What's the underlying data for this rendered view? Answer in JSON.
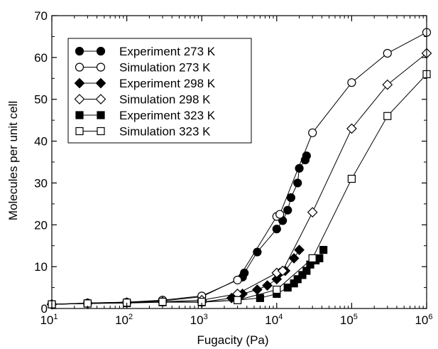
{
  "chart_data": {
    "type": "line",
    "title": "",
    "xlabel": "Fugacity (Pa)",
    "ylabel": "Molecules per unit cell",
    "xscale": "log",
    "xlim": [
      10,
      1000000
    ],
    "ylim": [
      0,
      70
    ],
    "yticks": [
      "0",
      "10",
      "20",
      "30",
      "40",
      "50",
      "60",
      "70"
    ],
    "xticks": [
      {
        "base": "10",
        "exp": "1",
        "value": 10
      },
      {
        "base": "10",
        "exp": "2",
        "value": 100
      },
      {
        "base": "10",
        "exp": "3",
        "value": 1000
      },
      {
        "base": "10",
        "exp": "4",
        "value": 10000
      },
      {
        "base": "10",
        "exp": "5",
        "value": 100000
      },
      {
        "base": "10",
        "exp": "6",
        "value": 1000000
      }
    ],
    "grid": false,
    "legend_position": "top-left",
    "series": [
      {
        "name": "Experiment 273 K",
        "marker": "circle",
        "filled": true,
        "x": [
          10,
          30,
          100,
          300,
          1000,
          3500,
          3700,
          5500,
          10000,
          12000,
          14000,
          15500,
          19000,
          20000,
          24000,
          25000
        ],
        "y": [
          1,
          1.3,
          1.5,
          1.8,
          2.8,
          7.5,
          8.5,
          13.5,
          19,
          21,
          23.5,
          26.5,
          30,
          33.5,
          35.5,
          36.5
        ]
      },
      {
        "name": "Simulation 273 K",
        "marker": "circle",
        "filled": false,
        "x": [
          10,
          30,
          100,
          300,
          1000,
          3000,
          10000,
          11000,
          30000,
          100000,
          300000,
          1000000
        ],
        "y": [
          1,
          1.3,
          1.5,
          2,
          3,
          6.8,
          22,
          22.5,
          42,
          54,
          61,
          66
        ]
      },
      {
        "name": "Experiment 298 K",
        "marker": "diamond",
        "filled": true,
        "x": [
          10,
          30,
          100,
          300,
          1000,
          2500,
          3500,
          5500,
          7500,
          10000,
          11000,
          13000,
          17000,
          20000
        ],
        "y": [
          1,
          1.2,
          1.4,
          1.6,
          1.5,
          2.5,
          3.5,
          4.5,
          5.5,
          7,
          8.5,
          9,
          12,
          14
        ]
      },
      {
        "name": "Simulation 298 K",
        "marker": "diamond",
        "filled": false,
        "x": [
          10,
          30,
          100,
          300,
          1000,
          3000,
          10000,
          12000,
          30000,
          100000,
          300000,
          1000000
        ],
        "y": [
          1,
          1.2,
          1.4,
          1.6,
          2,
          3.5,
          8.5,
          9,
          23,
          43,
          53.5,
          61
        ]
      },
      {
        "name": "Experiment 323 K",
        "marker": "square",
        "filled": true,
        "x": [
          10,
          30,
          100,
          300,
          1000,
          3000,
          6000,
          10000,
          14000,
          17000,
          19000,
          22000,
          25000,
          28000,
          33000,
          37000,
          42000
        ],
        "y": [
          1,
          1.2,
          1.3,
          1.5,
          1.5,
          2,
          2.5,
          3.5,
          5,
          6,
          7,
          8,
          9,
          10.5,
          11.5,
          12,
          14
        ]
      },
      {
        "name": "Simulation 323 K",
        "marker": "square",
        "filled": false,
        "x": [
          10,
          30,
          100,
          300,
          1000,
          3000,
          10000,
          30000,
          100000,
          300000,
          1000000
        ],
        "y": [
          1,
          1.2,
          1.4,
          1.6,
          1.6,
          2,
          4.5,
          12,
          31,
          46,
          56
        ]
      }
    ]
  }
}
